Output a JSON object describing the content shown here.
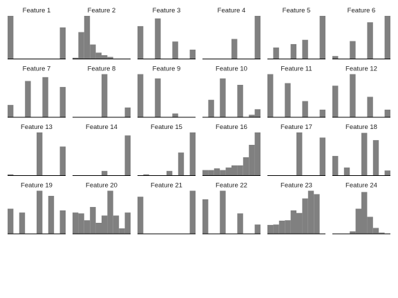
{
  "colors": {
    "bar": "#808080",
    "axis": "#000000",
    "background": "#ffffff"
  },
  "chart_data": [
    {
      "type": "bar",
      "title": "Feature 1",
      "values": [
        1,
        0,
        0,
        0,
        0,
        0,
        0,
        0,
        0,
        0.73
      ],
      "ylim": [
        0,
        1
      ]
    },
    {
      "type": "bar",
      "title": "Feature 2",
      "values": [
        0.02,
        0.62,
        1,
        0.33,
        0.14,
        0.08,
        0.04,
        0,
        0,
        0
      ],
      "ylim": [
        0,
        1
      ]
    },
    {
      "type": "bar",
      "title": "Feature 3",
      "values": [
        0.76,
        0,
        0,
        0.94,
        0,
        0,
        0.4,
        0,
        0,
        0.21
      ],
      "ylim": [
        0,
        1
      ]
    },
    {
      "type": "bar",
      "title": "Feature 4",
      "values": [
        0,
        0,
        0,
        0,
        0,
        0.46,
        0,
        0,
        0,
        1
      ],
      "ylim": [
        0,
        1
      ]
    },
    {
      "type": "bar",
      "title": "Feature 5",
      "values": [
        0,
        0.26,
        0,
        0,
        0.34,
        0,
        0.44,
        0,
        0,
        1
      ],
      "ylim": [
        0,
        1
      ]
    },
    {
      "type": "bar",
      "title": "Feature 6",
      "values": [
        0.06,
        0,
        0,
        0.41,
        0,
        0,
        0.85,
        0,
        0,
        1
      ],
      "ylim": [
        0,
        1
      ]
    },
    {
      "type": "bar",
      "title": "Feature 7",
      "values": [
        0.28,
        0,
        0,
        0.84,
        0,
        0,
        0.93,
        0,
        0,
        0.7
      ],
      "ylim": [
        0,
        1
      ]
    },
    {
      "type": "bar",
      "title": "Feature 8",
      "values": [
        0,
        0,
        0,
        0,
        0,
        1,
        0,
        0,
        0,
        0.22
      ],
      "ylim": [
        0,
        1
      ]
    },
    {
      "type": "bar",
      "title": "Feature 9",
      "values": [
        1,
        0,
        0,
        0.9,
        0,
        0,
        0.08,
        0,
        0,
        0
      ],
      "ylim": [
        0,
        1
      ]
    },
    {
      "type": "bar",
      "title": "Feature 10",
      "values": [
        0,
        0.4,
        0,
        0.9,
        0,
        0,
        0.75,
        0,
        0.05,
        0.18
      ],
      "ylim": [
        0,
        1
      ]
    },
    {
      "type": "bar",
      "title": "Feature 11",
      "values": [
        1,
        0,
        0,
        0.79,
        0,
        0,
        0.37,
        0,
        0,
        0.17
      ],
      "ylim": [
        0,
        1
      ]
    },
    {
      "type": "bar",
      "title": "Feature 12",
      "values": [
        0.73,
        0,
        0,
        1,
        0,
        0,
        0.47,
        0,
        0,
        0.17
      ],
      "ylim": [
        0,
        1
      ]
    },
    {
      "type": "bar",
      "title": "Feature 13",
      "values": [
        0.02,
        0,
        0,
        0,
        0,
        1,
        0,
        0,
        0,
        0.67
      ],
      "ylim": [
        0,
        1
      ]
    },
    {
      "type": "bar",
      "title": "Feature 14",
      "values": [
        0,
        0,
        0,
        0,
        0,
        0.1,
        0,
        0,
        0,
        0.93
      ],
      "ylim": [
        0,
        1
      ]
    },
    {
      "type": "bar",
      "title": "Feature 15",
      "values": [
        0,
        0.02,
        0,
        0,
        0,
        0.1,
        0,
        0.53,
        0,
        1
      ],
      "ylim": [
        0,
        1
      ]
    },
    {
      "type": "bar",
      "title": "Feature 16",
      "values": [
        0.12,
        0.12,
        0.16,
        0.12,
        0.18,
        0.23,
        0.23,
        0.42,
        0.71,
        1
      ],
      "ylim": [
        0,
        1
      ]
    },
    {
      "type": "bar",
      "title": "Feature 17",
      "values": [
        0,
        0,
        0,
        0,
        0,
        1,
        0,
        0,
        0,
        0.88
      ],
      "ylim": [
        0,
        1
      ]
    },
    {
      "type": "bar",
      "title": "Feature 18",
      "values": [
        0.45,
        0,
        0.18,
        0,
        0,
        0.99,
        0,
        0.82,
        0,
        0.11
      ],
      "ylim": [
        0,
        1
      ]
    },
    {
      "type": "bar",
      "title": "Feature 19",
      "values": [
        0.58,
        0,
        0.49,
        0,
        0,
        1,
        0,
        0.88,
        0,
        0.54
      ],
      "ylim": [
        0,
        1
      ]
    },
    {
      "type": "bar",
      "title": "Feature 20",
      "values": [
        0.49,
        0.47,
        0.31,
        0.62,
        0.25,
        0.42,
        1,
        0.42,
        0.12,
        0.49
      ],
      "ylim": [
        0,
        1
      ]
    },
    {
      "type": "bar",
      "title": "Feature 21",
      "values": [
        0.86,
        0,
        0,
        0,
        0,
        0,
        0,
        0,
        0,
        1
      ],
      "ylim": [
        0,
        1
      ]
    },
    {
      "type": "bar",
      "title": "Feature 22",
      "values": [
        0.8,
        0,
        0,
        1,
        0,
        0,
        0.47,
        0,
        0,
        0.21
      ],
      "ylim": [
        0,
        1
      ]
    },
    {
      "type": "bar",
      "title": "Feature 23",
      "values": [
        0.2,
        0.21,
        0.3,
        0.31,
        0.54,
        0.48,
        0.82,
        1,
        0.92,
        0
      ],
      "ylim": [
        0,
        1
      ]
    },
    {
      "type": "bar",
      "title": "Feature 24",
      "values": [
        0,
        0,
        0,
        0.05,
        0.58,
        0.97,
        0.39,
        0.13,
        0.02,
        0
      ],
      "ylim": [
        0,
        1
      ]
    }
  ]
}
